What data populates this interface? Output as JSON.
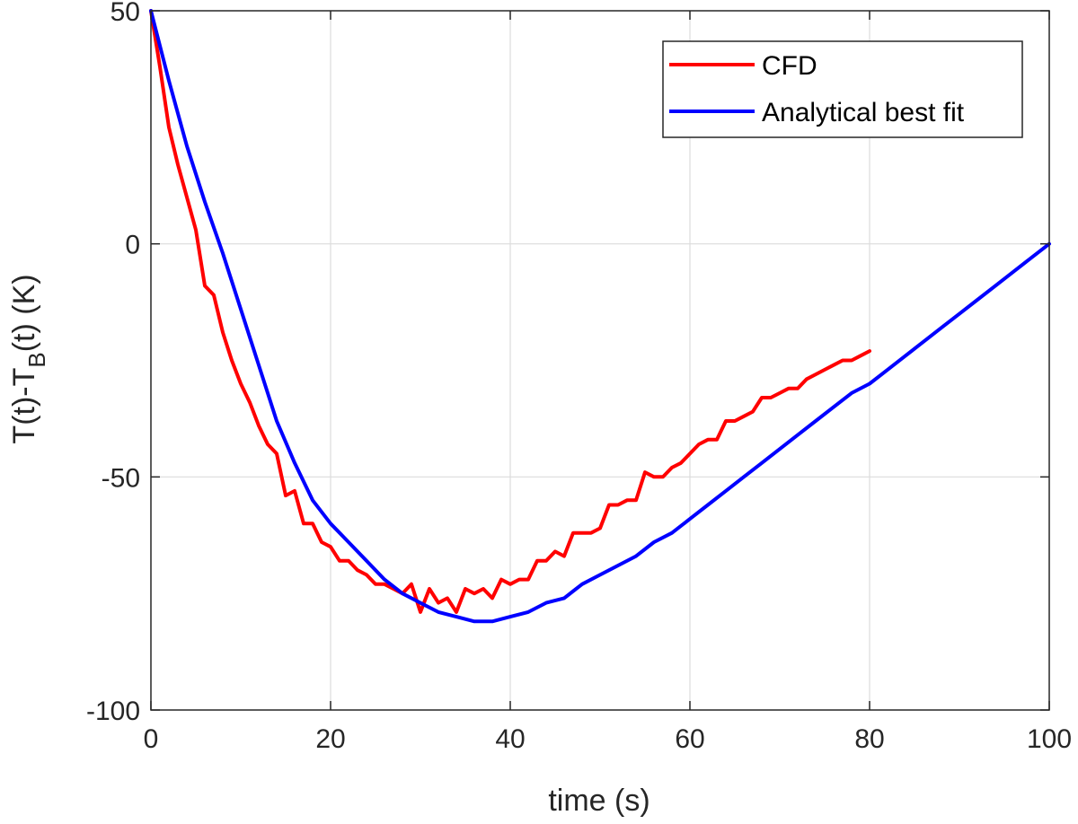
{
  "chart_data": {
    "type": "line",
    "title": "",
    "xlabel": "time (s)",
    "ylabel_parts": [
      "T(t)-T",
      "B",
      "(t)  (K)"
    ],
    "xlim": [
      0,
      100
    ],
    "ylim": [
      -100,
      50
    ],
    "xticks": [
      0,
      20,
      40,
      60,
      80,
      100
    ],
    "yticks": [
      -100,
      -50,
      0,
      50
    ],
    "grid": true,
    "legend_position": "top-right",
    "series": [
      {
        "name": "CFD",
        "color": "#ff0000",
        "x": [
          0,
          1,
          2,
          3,
          4,
          5,
          6,
          7,
          8,
          9,
          10,
          11,
          12,
          13,
          14,
          15,
          16,
          17,
          18,
          19,
          20,
          21,
          22,
          23,
          24,
          25,
          26,
          27,
          28,
          29,
          30,
          31,
          32,
          33,
          34,
          35,
          36,
          37,
          38,
          39,
          40,
          41,
          42,
          43,
          44,
          45,
          46,
          47,
          48,
          49,
          50,
          51,
          52,
          53,
          54,
          55,
          56,
          57,
          58,
          59,
          60,
          61,
          62,
          63,
          64,
          65,
          66,
          67,
          68,
          69,
          70,
          71,
          72,
          73,
          74,
          75,
          76,
          77,
          78,
          79,
          80
        ],
        "values": [
          50,
          38,
          25,
          17,
          10,
          3,
          -9,
          -11,
          -19,
          -25,
          -30,
          -34,
          -39,
          -43,
          -45,
          -54,
          -53,
          -60,
          -60,
          -64,
          -65,
          -68,
          -68,
          -70,
          -71,
          -73,
          -73,
          -74,
          -75,
          -73,
          -79,
          -74,
          -77,
          -76,
          -79,
          -74,
          -75,
          -74,
          -76,
          -72,
          -73,
          -72,
          -72,
          -68,
          -68,
          -66,
          -67,
          -62,
          -62,
          -62,
          -61,
          -56,
          -56,
          -55,
          -55,
          -49,
          -50,
          -50,
          -48,
          -47,
          -45,
          -43,
          -42,
          -42,
          -38,
          -38,
          -37,
          -36,
          -33,
          -33,
          -32,
          -31,
          -31,
          -29,
          -28,
          -27,
          -26,
          -25,
          -25,
          -24,
          -23
        ]
      },
      {
        "name": "Analytical best fit",
        "color": "#0000ff",
        "x": [
          0,
          2,
          4,
          6,
          8,
          10,
          12,
          14,
          16,
          18,
          20,
          22,
          24,
          26,
          28,
          30,
          32,
          34,
          36,
          38,
          40,
          42,
          44,
          46,
          48,
          50,
          52,
          54,
          56,
          58,
          60,
          62,
          64,
          66,
          68,
          70,
          72,
          74,
          76,
          78,
          80,
          82,
          84,
          86,
          88,
          90,
          92,
          94,
          96,
          98,
          100
        ],
        "values": [
          50,
          35,
          21,
          9,
          -2,
          -14,
          -26,
          -38,
          -47,
          -55,
          -60,
          -64,
          -68,
          -72,
          -75,
          -77,
          -79,
          -80,
          -81,
          -81,
          -80,
          -79,
          -77,
          -76,
          -73,
          -71,
          -69,
          -67,
          -64,
          -62,
          -59,
          -56,
          -53,
          -50,
          -47,
          -44,
          -41,
          -38,
          -35,
          -32,
          -30,
          -27,
          -24,
          -21,
          -18,
          -15,
          -12,
          -9,
          -6,
          -3,
          0
        ]
      }
    ]
  }
}
